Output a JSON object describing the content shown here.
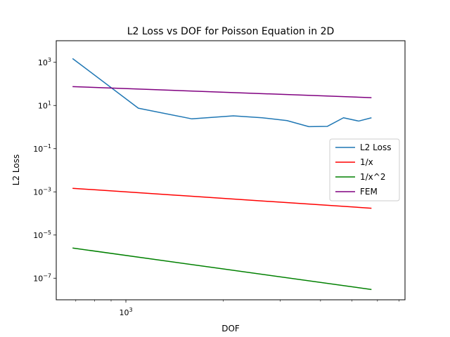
{
  "chart_data": {
    "type": "line",
    "title": "L2 Loss vs DOF for Poisson Equation in 2D",
    "xlabel": "DOF",
    "ylabel": "L2 Loss",
    "xscale": "log",
    "yscale": "log",
    "xlim": [
      609,
      7300
    ],
    "ylim": [
      1e-08,
      10000
    ],
    "x_ticks": [
      {
        "value": 1000,
        "mantissa": "10",
        "exponent": "3"
      }
    ],
    "x_minor_ticks": [
      700,
      800,
      900,
      2000,
      3000,
      4000,
      5000,
      6000,
      7000
    ],
    "y_ticks": [
      {
        "value": 1e-07,
        "mantissa": "10",
        "exponent": "−7"
      },
      {
        "value": 1e-05,
        "mantissa": "10",
        "exponent": "−5"
      },
      {
        "value": 0.001,
        "mantissa": "10",
        "exponent": "−3"
      },
      {
        "value": 0.1,
        "mantissa": "10",
        "exponent": "−1"
      },
      {
        "value": 10,
        "mantissa": "10",
        "exponent": "1"
      },
      {
        "value": 1000,
        "mantissa": "10",
        "exponent": "3"
      }
    ],
    "legend_position": "center-right",
    "series": [
      {
        "name": "L2 Loss",
        "color": "#1f77b4",
        "x": [
          684,
          1093,
          1600,
          2150,
          2640,
          3150,
          3680,
          4200,
          4710,
          5250,
          5750
        ],
        "y": [
          1500,
          7.5,
          2.4,
          3.3,
          2.7,
          2.0,
          1.05,
          1.08,
          2.7,
          1.9,
          2.7
        ]
      },
      {
        "name": "1/x",
        "color": "#ff0000",
        "x": [
          684,
          5750
        ],
        "y": [
          0.00146,
          0.000174
        ]
      },
      {
        "name": "1/x^2",
        "color": "#008000",
        "x": [
          684,
          5750
        ],
        "y": [
          2.5e-06,
          3e-08
        ]
      },
      {
        "name": "FEM",
        "color": "#800080",
        "x": [
          684,
          5750
        ],
        "y": [
          75,
          23
        ]
      }
    ]
  }
}
